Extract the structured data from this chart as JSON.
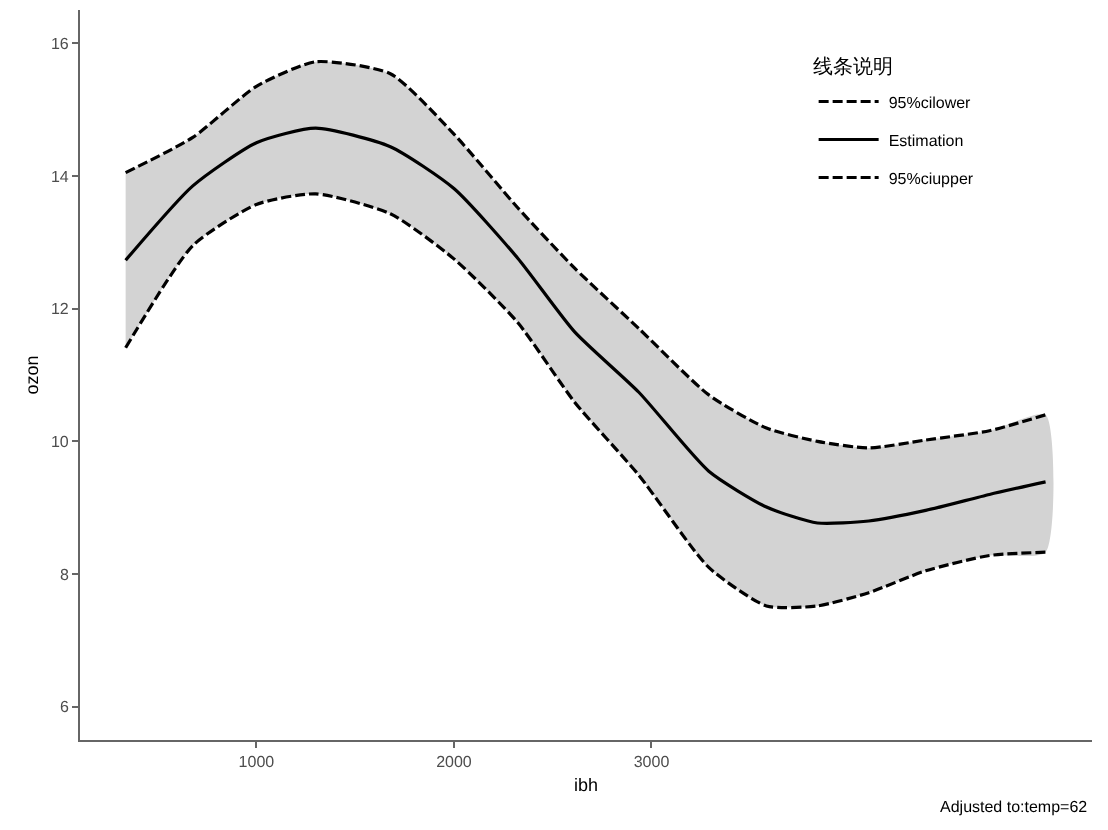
{
  "chart_data": {
    "type": "line",
    "xlabel": "ibh",
    "ylabel": "ozon",
    "legend_title": "线条说明",
    "annotations": [
      "Adjusted to:temp=62"
    ],
    "xlim": [
      107,
      5230
    ],
    "ylim": [
      5.5,
      16.5
    ],
    "xticks": [
      1000,
      2000,
      3000
    ],
    "yticks": [
      6,
      8,
      10,
      12,
      14,
      16
    ],
    "legend": "top right",
    "marker": "none",
    "x": [
      338,
      678,
      1000,
      1300,
      1678,
      2000,
      2323,
      2611,
      2936,
      3290,
      3582,
      3840,
      4100,
      4388,
      4711,
      4995
    ],
    "series": [
      {
        "name": "95%cilower",
        "color": "#000000",
        "line_style": "dashed",
        "values": [
          11.41,
          12.95,
          13.57,
          13.73,
          13.43,
          12.75,
          11.79,
          10.59,
          9.49,
          8.1,
          7.52,
          7.52,
          7.72,
          8.05,
          8.28,
          8.33
        ]
      },
      {
        "name": "Estimation",
        "color": "#000000",
        "line_style": "solid",
        "values": [
          12.73,
          13.85,
          14.5,
          14.72,
          14.44,
          13.81,
          12.76,
          11.65,
          10.74,
          9.55,
          9.01,
          8.77,
          8.8,
          8.96,
          9.2,
          9.39
        ],
        "lower": [
          11.41,
          12.95,
          13.57,
          13.73,
          13.43,
          12.75,
          11.79,
          10.59,
          9.49,
          8.1,
          7.52,
          7.52,
          7.72,
          8.05,
          8.28,
          8.33
        ],
        "upper": [
          14.05,
          14.58,
          15.35,
          15.72,
          15.54,
          14.63,
          13.52,
          12.61,
          11.7,
          10.7,
          10.2,
          10.0,
          9.9,
          10.02,
          10.16,
          10.4
        ]
      },
      {
        "name": "95%ciupper",
        "color": "#000000",
        "line_style": "dashed",
        "values": [
          14.05,
          14.58,
          15.35,
          15.72,
          15.54,
          14.63,
          13.52,
          12.61,
          11.7,
          10.7,
          10.2,
          10.0,
          9.9,
          10.02,
          10.16,
          10.4
        ]
      }
    ]
  }
}
